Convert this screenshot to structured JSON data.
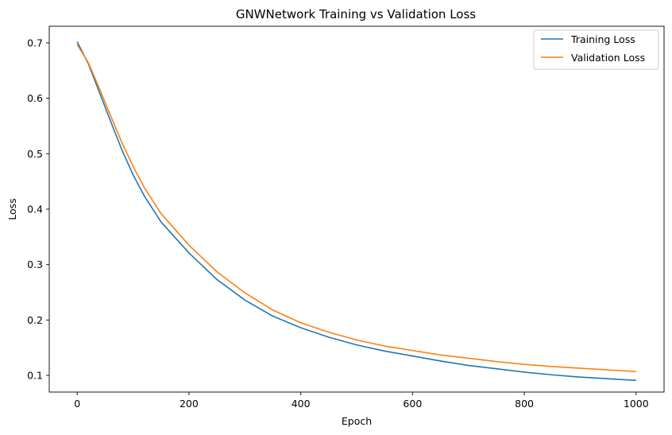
{
  "chart_data": {
    "type": "line",
    "title": "GNWNetwork Training vs Validation Loss",
    "xlabel": "Epoch",
    "ylabel": "Loss",
    "xlim": [
      -50,
      1050
    ],
    "ylim": [
      0.07,
      0.73
    ],
    "xticks": [
      0,
      200,
      400,
      600,
      800,
      1000
    ],
    "xtick_labels": [
      "0",
      "200",
      "400",
      "600",
      "800",
      "1000"
    ],
    "yticks": [
      0.1,
      0.2,
      0.3,
      0.4,
      0.5,
      0.6,
      0.7
    ],
    "ytick_labels": [
      "0.1",
      "0.2",
      "0.3",
      "0.4",
      "0.5",
      "0.6",
      "0.7"
    ],
    "grid": false,
    "legend_position": "upper right",
    "x": [
      0,
      20,
      40,
      60,
      80,
      100,
      120,
      150,
      200,
      250,
      300,
      350,
      400,
      450,
      500,
      550,
      600,
      650,
      700,
      750,
      800,
      850,
      900,
      950,
      1000
    ],
    "series": [
      {
        "name": "Training Loss",
        "color": "#1f77b4",
        "values": [
          0.702,
          0.662,
          0.61,
          0.558,
          0.507,
          0.462,
          0.424,
          0.377,
          0.321,
          0.273,
          0.236,
          0.207,
          0.186,
          0.169,
          0.155,
          0.144,
          0.135,
          0.126,
          0.118,
          0.112,
          0.106,
          0.101,
          0.097,
          0.094,
          0.091
        ]
      },
      {
        "name": "Validation Loss",
        "color": "#ff7f0e",
        "values": [
          0.697,
          0.664,
          0.617,
          0.568,
          0.52,
          0.477,
          0.439,
          0.392,
          0.335,
          0.287,
          0.249,
          0.218,
          0.195,
          0.178,
          0.164,
          0.153,
          0.145,
          0.137,
          0.131,
          0.125,
          0.12,
          0.116,
          0.113,
          0.11,
          0.107
        ]
      }
    ]
  }
}
